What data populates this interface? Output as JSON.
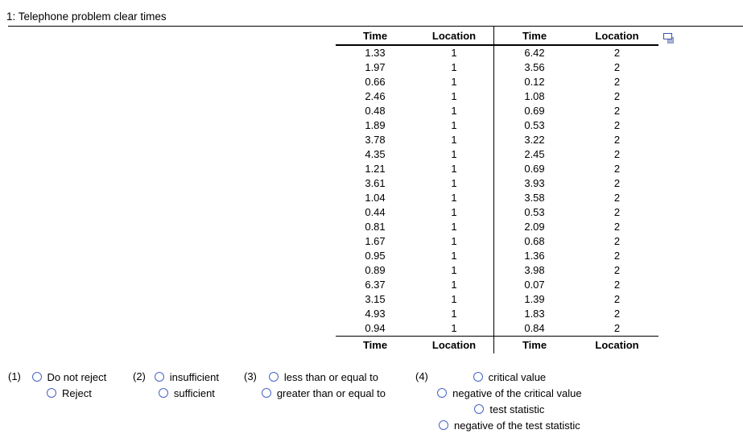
{
  "title": "1: Telephone problem clear times",
  "table": {
    "headers": [
      "Time",
      "Location",
      "Time",
      "Location"
    ],
    "footers": [
      "Time",
      "Location",
      "Time",
      "Location"
    ],
    "rows": [
      [
        "1.33",
        "1",
        "6.42",
        "2"
      ],
      [
        "1.97",
        "1",
        "3.56",
        "2"
      ],
      [
        "0.66",
        "1",
        "0.12",
        "2"
      ],
      [
        "2.46",
        "1",
        "1.08",
        "2"
      ],
      [
        "0.48",
        "1",
        "0.69",
        "2"
      ],
      [
        "1.89",
        "1",
        "0.53",
        "2"
      ],
      [
        "3.78",
        "1",
        "3.22",
        "2"
      ],
      [
        "4.35",
        "1",
        "2.45",
        "2"
      ],
      [
        "1.21",
        "1",
        "0.69",
        "2"
      ],
      [
        "3.61",
        "1",
        "3.93",
        "2"
      ],
      [
        "1.04",
        "1",
        "3.58",
        "2"
      ],
      [
        "0.44",
        "1",
        "0.53",
        "2"
      ],
      [
        "0.81",
        "1",
        "2.09",
        "2"
      ],
      [
        "1.67",
        "1",
        "0.68",
        "2"
      ],
      [
        "0.95",
        "1",
        "1.36",
        "2"
      ],
      [
        "0.89",
        "1",
        "3.98",
        "2"
      ],
      [
        "6.37",
        "1",
        "0.07",
        "2"
      ],
      [
        "3.15",
        "1",
        "1.39",
        "2"
      ],
      [
        "4.93",
        "1",
        "1.83",
        "2"
      ],
      [
        "0.94",
        "1",
        "0.84",
        "2"
      ]
    ]
  },
  "icons": {
    "table_corner": "duplicate-window-icon"
  },
  "questions": [
    {
      "number": "(1)",
      "selected": null,
      "options": [
        "Do not reject",
        "Reject"
      ]
    },
    {
      "number": "(2)",
      "selected": null,
      "options": [
        "insufficient",
        "sufficient"
      ]
    },
    {
      "number": "(3)",
      "selected": null,
      "options": [
        "less than or equal to",
        "greater than or equal to"
      ]
    },
    {
      "number": "(4)",
      "selected": null,
      "options": [
        "critical value",
        "negative of the critical value",
        "test statistic",
        "negative of the test statistic"
      ]
    }
  ],
  "colors": {
    "background": "#ffffff",
    "text": "#000000",
    "rule": "#000000",
    "radio_border": "#4565c8",
    "icon_front_border": "#3a55ad",
    "icon_back_fill": "#aab3d9"
  }
}
